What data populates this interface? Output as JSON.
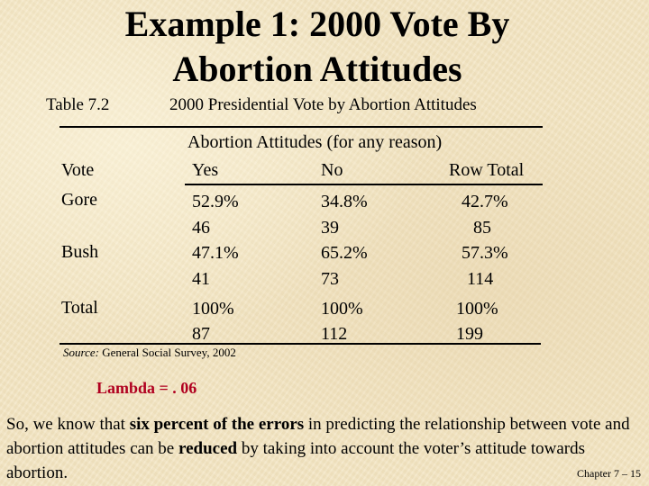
{
  "slide": {
    "title_line1": "Example 1: 2000 Vote By",
    "title_line2": "Abortion Attitudes",
    "table_id": "Table 7.2",
    "table_caption": "2000 Presidential Vote by Abortion Attitudes"
  },
  "table": {
    "group_header": "Abortion Attitudes (for any reason)",
    "row_header": "Vote",
    "columns": [
      "Yes",
      "No",
      "Row Total"
    ],
    "rows": [
      {
        "label": "Gore",
        "pct": [
          "52.9%",
          "34.8%",
          "42.7%"
        ],
        "n": [
          "46",
          "39",
          "85"
        ]
      },
      {
        "label": "Bush",
        "pct": [
          "47.1%",
          "65.2%",
          "57.3%"
        ],
        "n": [
          "41",
          "73",
          "114"
        ]
      },
      {
        "label": "Total",
        "pct": [
          "100%",
          "100%",
          "100%"
        ],
        "n": [
          "87",
          "112",
          "199"
        ]
      }
    ]
  },
  "source": {
    "label": "Source:",
    "text": "General Social Survey, 2002"
  },
  "lambda": "Lambda = . 06",
  "paragraph": {
    "p1": "So, we know that ",
    "b1": "six percent of the errors",
    "p2": " in predicting the relationship between vote and abortion attitudes can be ",
    "b2": "reduced",
    "p3": " by taking into account the voter’s attitude towards abortion."
  },
  "footer": "Chapter 7 – 15",
  "colors": {
    "background": "#f3e6c4",
    "lambda_text": "#b00020"
  }
}
